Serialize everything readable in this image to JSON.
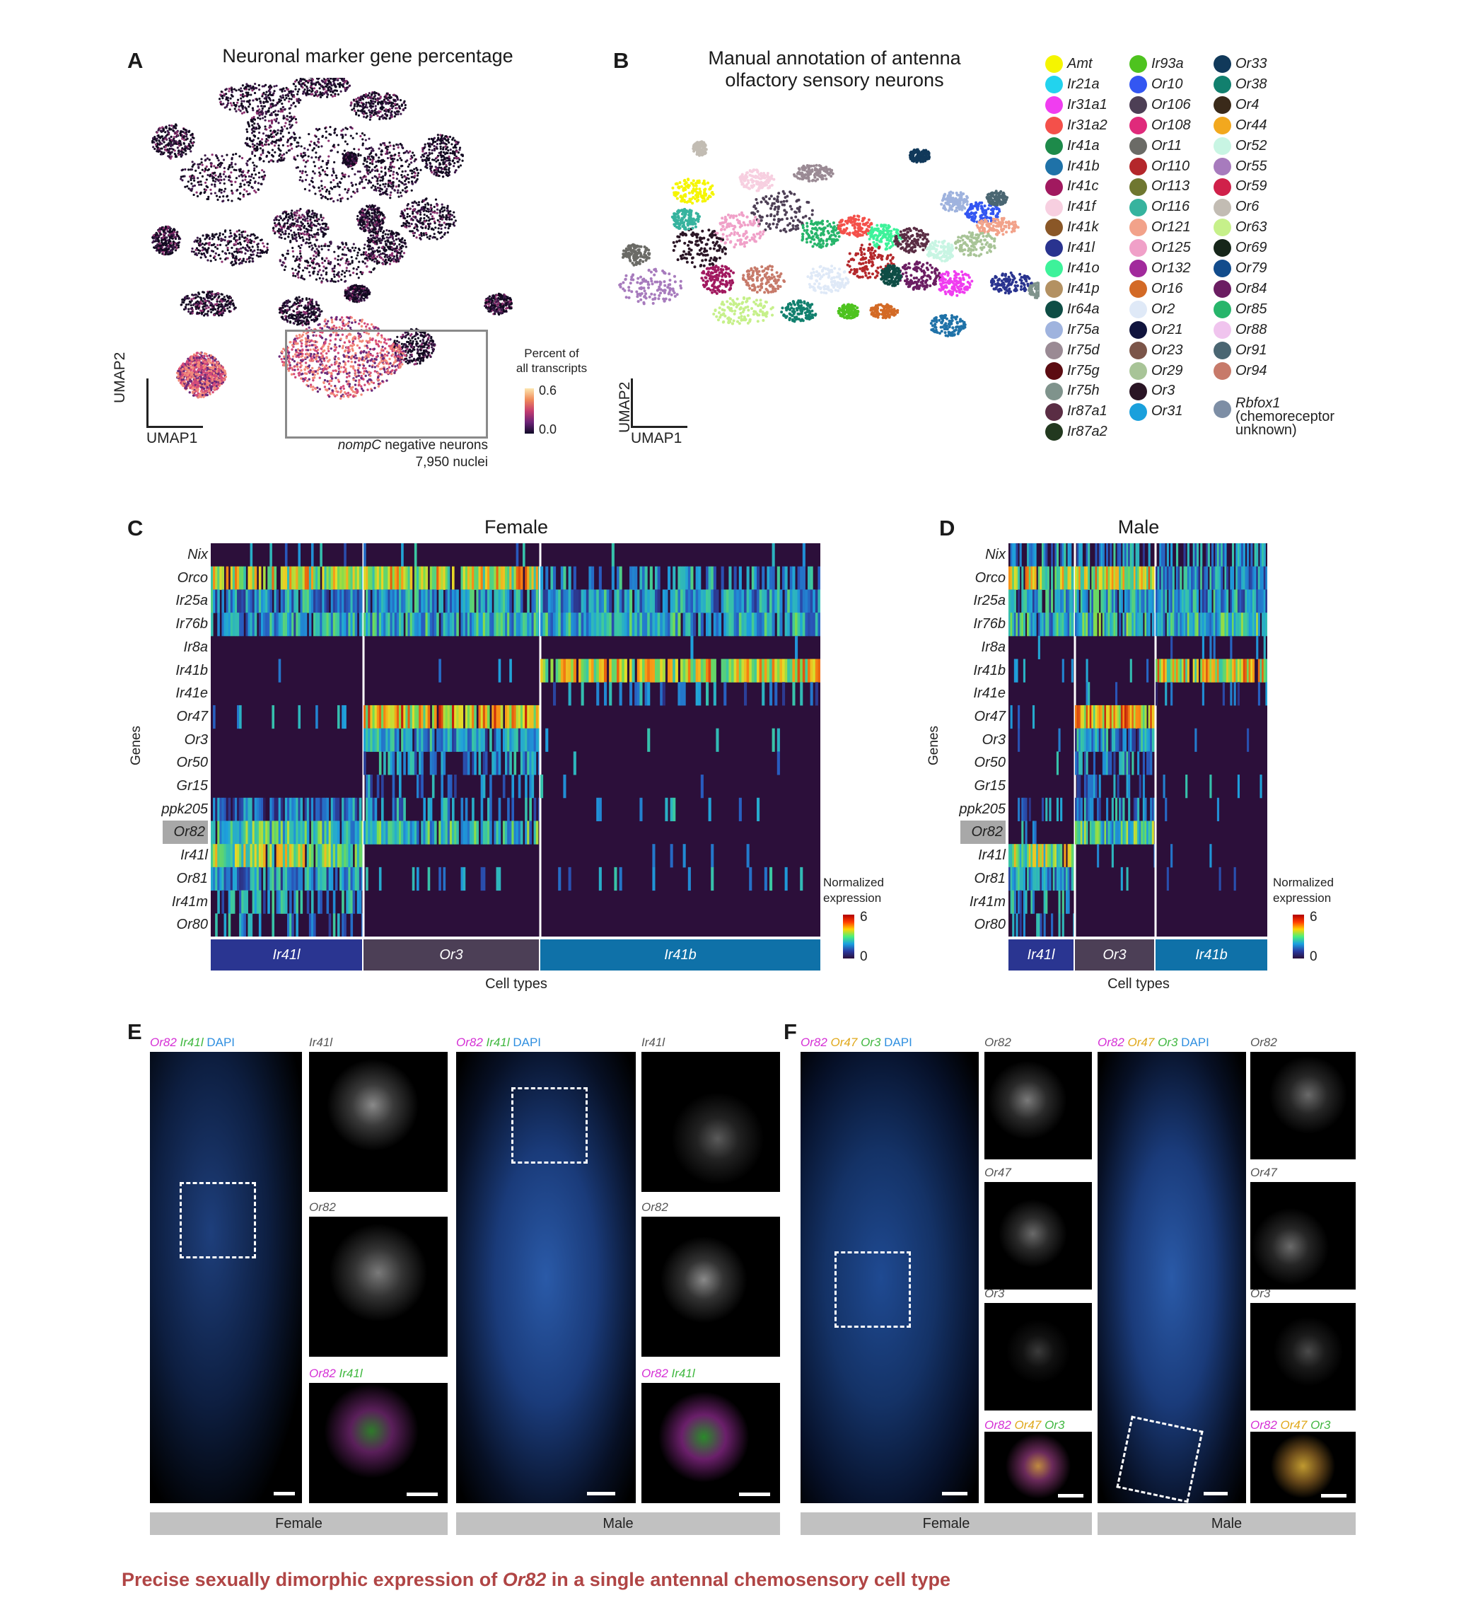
{
  "panels": {
    "A": {
      "letter": "A",
      "title": "Neuronal marker gene percentage",
      "axes": {
        "x": "UMAP1",
        "y": "UMAP2"
      },
      "colorbar": {
        "label_line1": "Percent of",
        "label_line2": "all transcripts",
        "max": "0.6",
        "min": "0.0"
      },
      "inset_caption_gene": "nompC",
      "inset_caption_rest": " negative neurons",
      "inset_count": "7,950 nuclei"
    },
    "B": {
      "letter": "B",
      "title_line1": "Manual annotation of antenna",
      "title_line2": "olfactory sensory neurons",
      "axes": {
        "x": "UMAP1",
        "y": "UMAP2"
      }
    },
    "C": {
      "letter": "C",
      "title": "Female",
      "ylabel": "Genes",
      "xlabel": "Cell types"
    },
    "D": {
      "letter": "D",
      "title": "Male",
      "ylabel": "Genes",
      "xlabel": "Cell types"
    },
    "E": {
      "letter": "E",
      "main_label": {
        "or82": "Or82",
        "ir41l": "Ir41l",
        "dapi": "DAPI"
      },
      "sub_labels": [
        "Ir41l",
        "Or82"
      ],
      "merge_label": {
        "or82": "Or82",
        "ir41l": "Ir41l"
      },
      "conditions": [
        "Female",
        "Male"
      ]
    },
    "F": {
      "letter": "F",
      "main_label": {
        "or82": "Or82",
        "or47": "Or47",
        "or3": "Or3",
        "dapi": "DAPI"
      },
      "sub_labels": [
        "Or82",
        "Or47",
        "Or3"
      ],
      "merge_label": {
        "or82": "Or82",
        "or47": "Or47",
        "or3": "Or3"
      },
      "conditions": [
        "Female",
        "Male"
      ]
    }
  },
  "legend_B": [
    {
      "name": "Amt",
      "color": "#f5f500"
    },
    {
      "name": "Ir21a",
      "color": "#22d3ee"
    },
    {
      "name": "Ir31a1",
      "color": "#f03df0"
    },
    {
      "name": "Ir31a2",
      "color": "#f4504a"
    },
    {
      "name": "Ir41a",
      "color": "#1d8a4a"
    },
    {
      "name": "Ir41b",
      "color": "#1f72a8"
    },
    {
      "name": "Ir41c",
      "color": "#a1195f"
    },
    {
      "name": "Ir41f",
      "color": "#f7cfe0"
    },
    {
      "name": "Ir41k",
      "color": "#8a5727"
    },
    {
      "name": "Ir41l",
      "color": "#29338f"
    },
    {
      "name": "Ir41o",
      "color": "#3df29a"
    },
    {
      "name": "Ir41p",
      "color": "#b39162"
    },
    {
      "name": "Ir64a",
      "color": "#0e4d45"
    },
    {
      "name": "Ir75a",
      "color": "#9fb3de"
    },
    {
      "name": "Ir75d",
      "color": "#9a8a94"
    },
    {
      "name": "Ir75g",
      "color": "#5c0c12"
    },
    {
      "name": "Ir75h",
      "color": "#7f938c"
    },
    {
      "name": "Ir87a1",
      "color": "#5a2d44"
    },
    {
      "name": "Ir87a2",
      "color": "#22391f"
    },
    {
      "name": "Ir93a",
      "color": "#4ec31f"
    },
    {
      "name": "Or10",
      "color": "#3356f2"
    },
    {
      "name": "Or106",
      "color": "#4d3f55"
    },
    {
      "name": "Or108",
      "color": "#e02a7b"
    },
    {
      "name": "Or11",
      "color": "#6b6b66"
    },
    {
      "name": "Or110",
      "color": "#b4272b"
    },
    {
      "name": "Or113",
      "color": "#6f7730"
    },
    {
      "name": "Or116",
      "color": "#36b39e"
    },
    {
      "name": "Or121",
      "color": "#f2a28a"
    },
    {
      "name": "Or125",
      "color": "#f0a0c8"
    },
    {
      "name": "Or132",
      "color": "#a12a9c"
    },
    {
      "name": "Or16",
      "color": "#d36a26"
    },
    {
      "name": "Or2",
      "color": "#dfe9f7"
    },
    {
      "name": "Or21",
      "color": "#10143d"
    },
    {
      "name": "Or23",
      "color": "#7b5549"
    },
    {
      "name": "Or29",
      "color": "#a8c497"
    },
    {
      "name": "Or3",
      "color": "#2a1525"
    },
    {
      "name": "Or31",
      "color": "#1aa0dc"
    },
    {
      "name": "Or33",
      "color": "#11395a"
    },
    {
      "name": "Or38",
      "color": "#11806e"
    },
    {
      "name": "Or4",
      "color": "#3a2a1a"
    },
    {
      "name": "Or44",
      "color": "#f2a81e"
    },
    {
      "name": "Or52",
      "color": "#c8f5e3"
    },
    {
      "name": "Or55",
      "color": "#a77bbd"
    },
    {
      "name": "Or59",
      "color": "#d0214a"
    },
    {
      "name": "Or6",
      "color": "#c2bcb3"
    },
    {
      "name": "Or63",
      "color": "#c6f08a"
    },
    {
      "name": "Or69",
      "color": "#16261a"
    },
    {
      "name": "Or79",
      "color": "#124c8c"
    },
    {
      "name": "Or84",
      "color": "#6b1d62"
    },
    {
      "name": "Or85",
      "color": "#27b56b"
    },
    {
      "name": "Or88",
      "color": "#f0c4ee"
    },
    {
      "name": "Or91",
      "color": "#4a6672"
    },
    {
      "name": "Or94",
      "color": "#c77a6a"
    }
  ],
  "legend_B_last": {
    "name": "Rbfox1",
    "note_line1": "(chemoreceptor",
    "note_line2": "unknown)",
    "color": "#7d8ea5"
  },
  "heatmap_genes": [
    "Nix",
    "Orco",
    "Ir25a",
    "Ir76b",
    "Ir8a",
    "Ir41b",
    "Ir41e",
    "Or47",
    "Or3",
    "Or50",
    "Gr15",
    "ppk205",
    "Or82",
    "Ir41l",
    "Or81",
    "Ir41m",
    "Or80"
  ],
  "highlighted_gene": "Or82",
  "heatmap_colorbar": {
    "label_line1": "Normalized",
    "label_line2": "expression",
    "max": "6",
    "min": "0"
  },
  "cell_types": [
    "Ir41l",
    "Or3",
    "Ir41b"
  ],
  "cell_type_colors": [
    "#2a3591",
    "#4c3f56",
    "#0f71a8"
  ],
  "caption": {
    "before": "Precise sexually dimorphic expression of ",
    "gene": "Or82",
    "after": " in a single antennal chemosensory cell type",
    "color": "#b04545"
  },
  "chart_data": [
    {
      "type": "heatmap",
      "title": "Female",
      "ylabel": "Genes",
      "xlabel": "Cell types",
      "rows": [
        "Nix",
        "Orco",
        "Ir25a",
        "Ir76b",
        "Ir8a",
        "Ir41b",
        "Ir41e",
        "Or47",
        "Or3",
        "Or50",
        "Gr15",
        "ppk205",
        "Or82",
        "Ir41l",
        "Or81",
        "Ir41m",
        "Or80"
      ],
      "groups": [
        "Ir41l",
        "Or3",
        "Ir41b"
      ],
      "mean_expression": [
        [
          0.1,
          0.1,
          0.1
        ],
        [
          4.0,
          4.2,
          1.4
        ],
        [
          2.0,
          2.2,
          2.0
        ],
        [
          2.2,
          2.4,
          2.3
        ],
        [
          0.0,
          0.0,
          0.1
        ],
        [
          0.1,
          0.1,
          4.2
        ],
        [
          0.0,
          0.0,
          0.8
        ],
        [
          0.2,
          4.6,
          0.0
        ],
        [
          0.0,
          2.0,
          0.1
        ],
        [
          0.0,
          1.2,
          0.1
        ],
        [
          0.0,
          0.6,
          0.1
        ],
        [
          1.5,
          1.2,
          0.1
        ],
        [
          2.8,
          2.6,
          0.0
        ],
        [
          3.6,
          0.0,
          0.1
        ],
        [
          2.0,
          0.2,
          0.2
        ],
        [
          1.4,
          0.0,
          0.0
        ],
        [
          1.2,
          0.0,
          0.0
        ]
      ],
      "color_range": [
        0,
        6
      ]
    },
    {
      "type": "heatmap",
      "title": "Male",
      "ylabel": "Genes",
      "xlabel": "Cell types",
      "rows": [
        "Nix",
        "Orco",
        "Ir25a",
        "Ir76b",
        "Ir8a",
        "Ir41b",
        "Ir41e",
        "Or47",
        "Or3",
        "Or50",
        "Gr15",
        "ppk205",
        "Or82",
        "Ir41l",
        "Or81",
        "Ir41m",
        "Or80"
      ],
      "groups": [
        "Ir41l",
        "Or3",
        "Ir41b"
      ],
      "mean_expression": [
        [
          1.2,
          1.2,
          1.2
        ],
        [
          4.0,
          4.2,
          1.8
        ],
        [
          2.0,
          2.4,
          2.0
        ],
        [
          2.4,
          2.6,
          2.6
        ],
        [
          0.1,
          0.0,
          0.1
        ],
        [
          0.1,
          0.1,
          4.2
        ],
        [
          0.0,
          0.1,
          0.3
        ],
        [
          0.2,
          4.6,
          0.0
        ],
        [
          0.1,
          1.8,
          0.1
        ],
        [
          0.1,
          1.4,
          0.0
        ],
        [
          0.1,
          1.0,
          0.1
        ],
        [
          1.0,
          1.2,
          0.1
        ],
        [
          0.2,
          2.8,
          0.0
        ],
        [
          3.6,
          0.1,
          0.1
        ],
        [
          2.0,
          0.1,
          0.1
        ],
        [
          1.4,
          0.0,
          0.0
        ],
        [
          1.2,
          0.0,
          0.0
        ]
      ],
      "color_range": [
        0,
        6
      ]
    }
  ]
}
